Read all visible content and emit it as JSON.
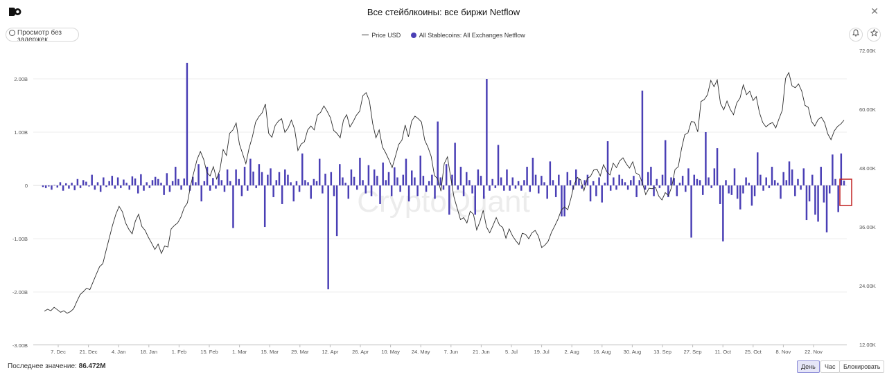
{
  "header": {
    "title": "Все стейблкоины: все биржи Netflow",
    "realtime_label": "Просмотр без задержек"
  },
  "legend": {
    "price_label": "Price USD",
    "netflow_label": "All Stablecoins: All Exchanges Netflow"
  },
  "footer": {
    "last_value_label": "Последнее значение:",
    "last_value": "86.472M",
    "day_label": "День",
    "hour_label": "Час",
    "block_label": "Блокировать"
  },
  "watermark": "CryptoQuant",
  "colors": {
    "bar": "#4a3fb5",
    "price_line": "#2b2b2b",
    "highlight": "#c02020",
    "legend_dot": "#4a3fb5"
  },
  "icons": [
    "logo-icon",
    "close-icon",
    "clock-icon",
    "bell-icon",
    "star-icon"
  ],
  "chart_data": {
    "type": "bar",
    "x_tick_labels": [
      "7. Dec",
      "21. Dec",
      "4. Jan",
      "18. Jan",
      "1. Feb",
      "15. Feb",
      "1. Mar",
      "15. Mar",
      "29. Mar",
      "12. Apr",
      "26. Apr",
      "10. May",
      "24. May",
      "7. Jun",
      "21. Jun",
      "5. Jul",
      "19. Jul",
      "2. Aug",
      "16. Aug",
      "30. Aug",
      "13. Sep",
      "27. Sep",
      "11. Oct",
      "25. Oct",
      "8. Nov",
      "22. Nov"
    ],
    "left_axis": {
      "ticks": [
        "2.00B",
        "1.00B",
        "0",
        "-1.00B",
        "-2.00B",
        "-3.00B"
      ],
      "ylim": [
        -3.0,
        2.6
      ],
      "unit": "B"
    },
    "right_axis": {
      "ticks": [
        "72.00K",
        "60.00K",
        "48.00K",
        "36.00K",
        "24.00K",
        "12.00K"
      ],
      "ylim": [
        12,
        72
      ],
      "unit": "K"
    },
    "grid": true,
    "legend_position": "top-center",
    "series": [
      {
        "name": "All Stablecoins: All Exchanges Netflow",
        "type": "bar",
        "axis": "left",
        "values": [
          -0.03,
          -0.05,
          -0.02,
          -0.08,
          0.01,
          -0.04,
          0.06,
          -0.1,
          0.04,
          -0.06,
          0.05,
          -0.09,
          0.12,
          -0.05,
          0.1,
          0.07,
          -0.02,
          0.2,
          -0.08,
          0.06,
          -0.12,
          0.15,
          -0.03,
          0.08,
          0.18,
          -0.06,
          0.15,
          -0.05,
          0.11,
          0.05,
          -0.08,
          0.17,
          0.13,
          -0.15,
          0.21,
          -0.1,
          0.06,
          -0.05,
          0.1,
          0.16,
          0.12,
          0.05,
          -0.18,
          0.23,
          -0.12,
          0.08,
          0.35,
          0.12,
          -0.08,
          0.13,
          2.3,
          -0.1,
          0.16,
          0.06,
          0.4,
          -0.3,
          0.08,
          0.35,
          -0.1,
          0.14,
          -0.06,
          0.22,
          0.1,
          -0.12,
          0.3,
          0.08,
          -0.8,
          0.3,
          0.12,
          -0.2,
          0.35,
          -0.1,
          0.5,
          0.26,
          -0.05,
          0.4,
          0.25,
          -0.78,
          0.2,
          0.32,
          -0.22,
          0.1,
          0.25,
          -0.35,
          0.3,
          0.2,
          0.06,
          -0.3,
          0.08,
          -0.12,
          0.6,
          0.1,
          0.06,
          -0.25,
          0.12,
          0.08,
          0.5,
          -0.15,
          0.22,
          -1.95,
          0.25,
          -0.2,
          -0.95,
          0.4,
          0.15,
          0.05,
          -0.25,
          0.3,
          0.16,
          -0.08,
          0.52,
          0.1,
          -0.15,
          0.38,
          -0.2,
          0.3,
          0.18,
          -0.35,
          0.43,
          0.1,
          0.25,
          -0.2,
          0.34,
          0.15,
          -0.12,
          0.2,
          0.5,
          -0.3,
          0.28,
          0.15,
          -0.2,
          0.56,
          0.18,
          -0.12,
          0.08,
          0.2,
          -0.25,
          1.2,
          0.15,
          -0.08,
          0.4,
          -0.55,
          0.2,
          0.8,
          -0.08,
          0.35,
          -0.2,
          0.25,
          0.1,
          -0.15,
          -0.55,
          0.3,
          0.18,
          -0.25,
          2.0,
          -0.1,
          0.12,
          -0.05,
          0.76,
          0.15,
          -0.1,
          0.3,
          -0.1,
          0.15,
          -0.06,
          0.08,
          -0.1,
          0.1,
          0.35,
          -0.12,
          0.52,
          0.2,
          -0.15,
          0.18,
          0.06,
          -0.25,
          0.45,
          0.1,
          -0.22,
          0.2,
          -0.58,
          -0.58,
          0.25,
          0.1,
          -0.08,
          0.3,
          0.12,
          -0.06,
          0.1,
          0.2,
          -0.3,
          0.08,
          -0.2,
          0.15,
          -0.32,
          0.05,
          0.83,
          -0.1,
          0.15,
          -0.08,
          0.2,
          0.12,
          0.06,
          -0.08,
          0.1,
          0.18,
          -0.22,
          0.1,
          1.78,
          -0.08,
          0.25,
          0.35,
          -0.2,
          0.12,
          -0.05,
          0.2,
          0.85,
          -0.22,
          0.15,
          0.14,
          -0.2,
          0.05,
          0.18,
          -0.12,
          0.32,
          -0.98,
          0.2,
          0.12,
          0.1,
          -0.18,
          1.0,
          0.15,
          -0.05,
          0.32,
          0.7,
          -0.35,
          -1.05,
          0.1,
          -0.15,
          -0.18,
          0.32,
          -0.25,
          -0.45,
          -0.15,
          0.15,
          0.05,
          -0.38,
          -0.2,
          0.62,
          0.2,
          -0.1,
          0.15,
          -0.05,
          0.35,
          0.1,
          0.05,
          -0.25,
          0.25,
          0.1,
          0.45,
          0.3,
          -0.2,
          0.12,
          -0.08,
          0.32,
          -0.65,
          -0.3,
          0.2,
          -0.55,
          -0.68,
          0.35,
          -0.32,
          -0.88,
          -0.15,
          0.58,
          0.12,
          -0.5,
          0.6,
          0.09
        ],
        "color": "#4a3fb5"
      },
      {
        "name": "Price USD",
        "type": "line",
        "axis": "right",
        "values": [
          18.8,
          19.2,
          18.9,
          19.6,
          19.1,
          18.6,
          18.9,
          18.4,
          18.7,
          19.3,
          20.8,
          22.2,
          22.8,
          23.5,
          23.2,
          24.8,
          26.4,
          27.9,
          28.5,
          31.2,
          33.8,
          36.4,
          38.6,
          40.2,
          39.1,
          36.8,
          35.5,
          34.6,
          37.2,
          38.6,
          36.1,
          35.3,
          33.9,
          32.7,
          31.4,
          32.5,
          30.6,
          32.1,
          31.9,
          35.6,
          36.3,
          36.8,
          38.0,
          39.9,
          40.9,
          44.5,
          47.2,
          49.8,
          51.4,
          49.8,
          47.1,
          46.4,
          48.3,
          45.8,
          47.6,
          51.8,
          50.6,
          55.1,
          55.8,
          57.2,
          52.9,
          50.9,
          48.9,
          52.1,
          54.4,
          57.4,
          58.5,
          59.3,
          61.1,
          55.1,
          54.3,
          56.7,
          57.6,
          58.1,
          55.3,
          56.2,
          57.8,
          55.9,
          51.6,
          52.9,
          53.4,
          55.8,
          56.6,
          55.8,
          58.8,
          59.4,
          60.7,
          59.6,
          58.3,
          55.7,
          55.1,
          54.2,
          57.8,
          58.9,
          56.4,
          57.5,
          58.8,
          59.6,
          62.8,
          63.4,
          61.7,
          57.1,
          54.2,
          55.8,
          52.3,
          51.1,
          49.7,
          48.1,
          50.4,
          52.8,
          53.7,
          56.8,
          54.4,
          57.6,
          58.6,
          58.1,
          57.4,
          53.7,
          52.3,
          50.4,
          46.5,
          45.8,
          43.3,
          48.9,
          50.3,
          46.1,
          42.1,
          39.8,
          37.5,
          37.9,
          36.8,
          39.2,
          38.6,
          35.4,
          37.1,
          39.4,
          36.0,
          34.8,
          36.3,
          37.9,
          36.4,
          35.9,
          33.7,
          35.6,
          34.2,
          33.2,
          32.4,
          34.7,
          34.5,
          33.6,
          34.8,
          35.3,
          34.1,
          31.8,
          32.3,
          33.1,
          34.9,
          36.2,
          37.6,
          39.4,
          40.1,
          39.5,
          41.9,
          44.7,
          46.1,
          45.6,
          43.4,
          45.9,
          46.3,
          47.6,
          47.8,
          46.4,
          48.7,
          47.3,
          46.6,
          49.0,
          48.1,
          49.5,
          50.1,
          48.9,
          48.0,
          49.3,
          47.0,
          46.6,
          44.9,
          42.6,
          43.9,
          43.8,
          44.1,
          42.3,
          41.5,
          43.0,
          42.4,
          44.2,
          47.7,
          48.3,
          51.9,
          54.8,
          55.2,
          57.5,
          57.4,
          55.4,
          61.6,
          62.0,
          63.0,
          65.9,
          64.6,
          66.0,
          61.2,
          59.9,
          61.7,
          60.0,
          58.9,
          61.3,
          62.3,
          65.0,
          63.0,
          63.7,
          61.8,
          62.6,
          59.3,
          57.3,
          56.4,
          57.0,
          57.3,
          56.2,
          58.1,
          59.8,
          66.3,
          67.5,
          64.8,
          64.4,
          65.2,
          63.7,
          60.8,
          60.4,
          57.5,
          56.6,
          57.9,
          58.4,
          57.3,
          55.0,
          53.8,
          55.6,
          56.5,
          57.0,
          57.8
        ]
      }
    ]
  }
}
